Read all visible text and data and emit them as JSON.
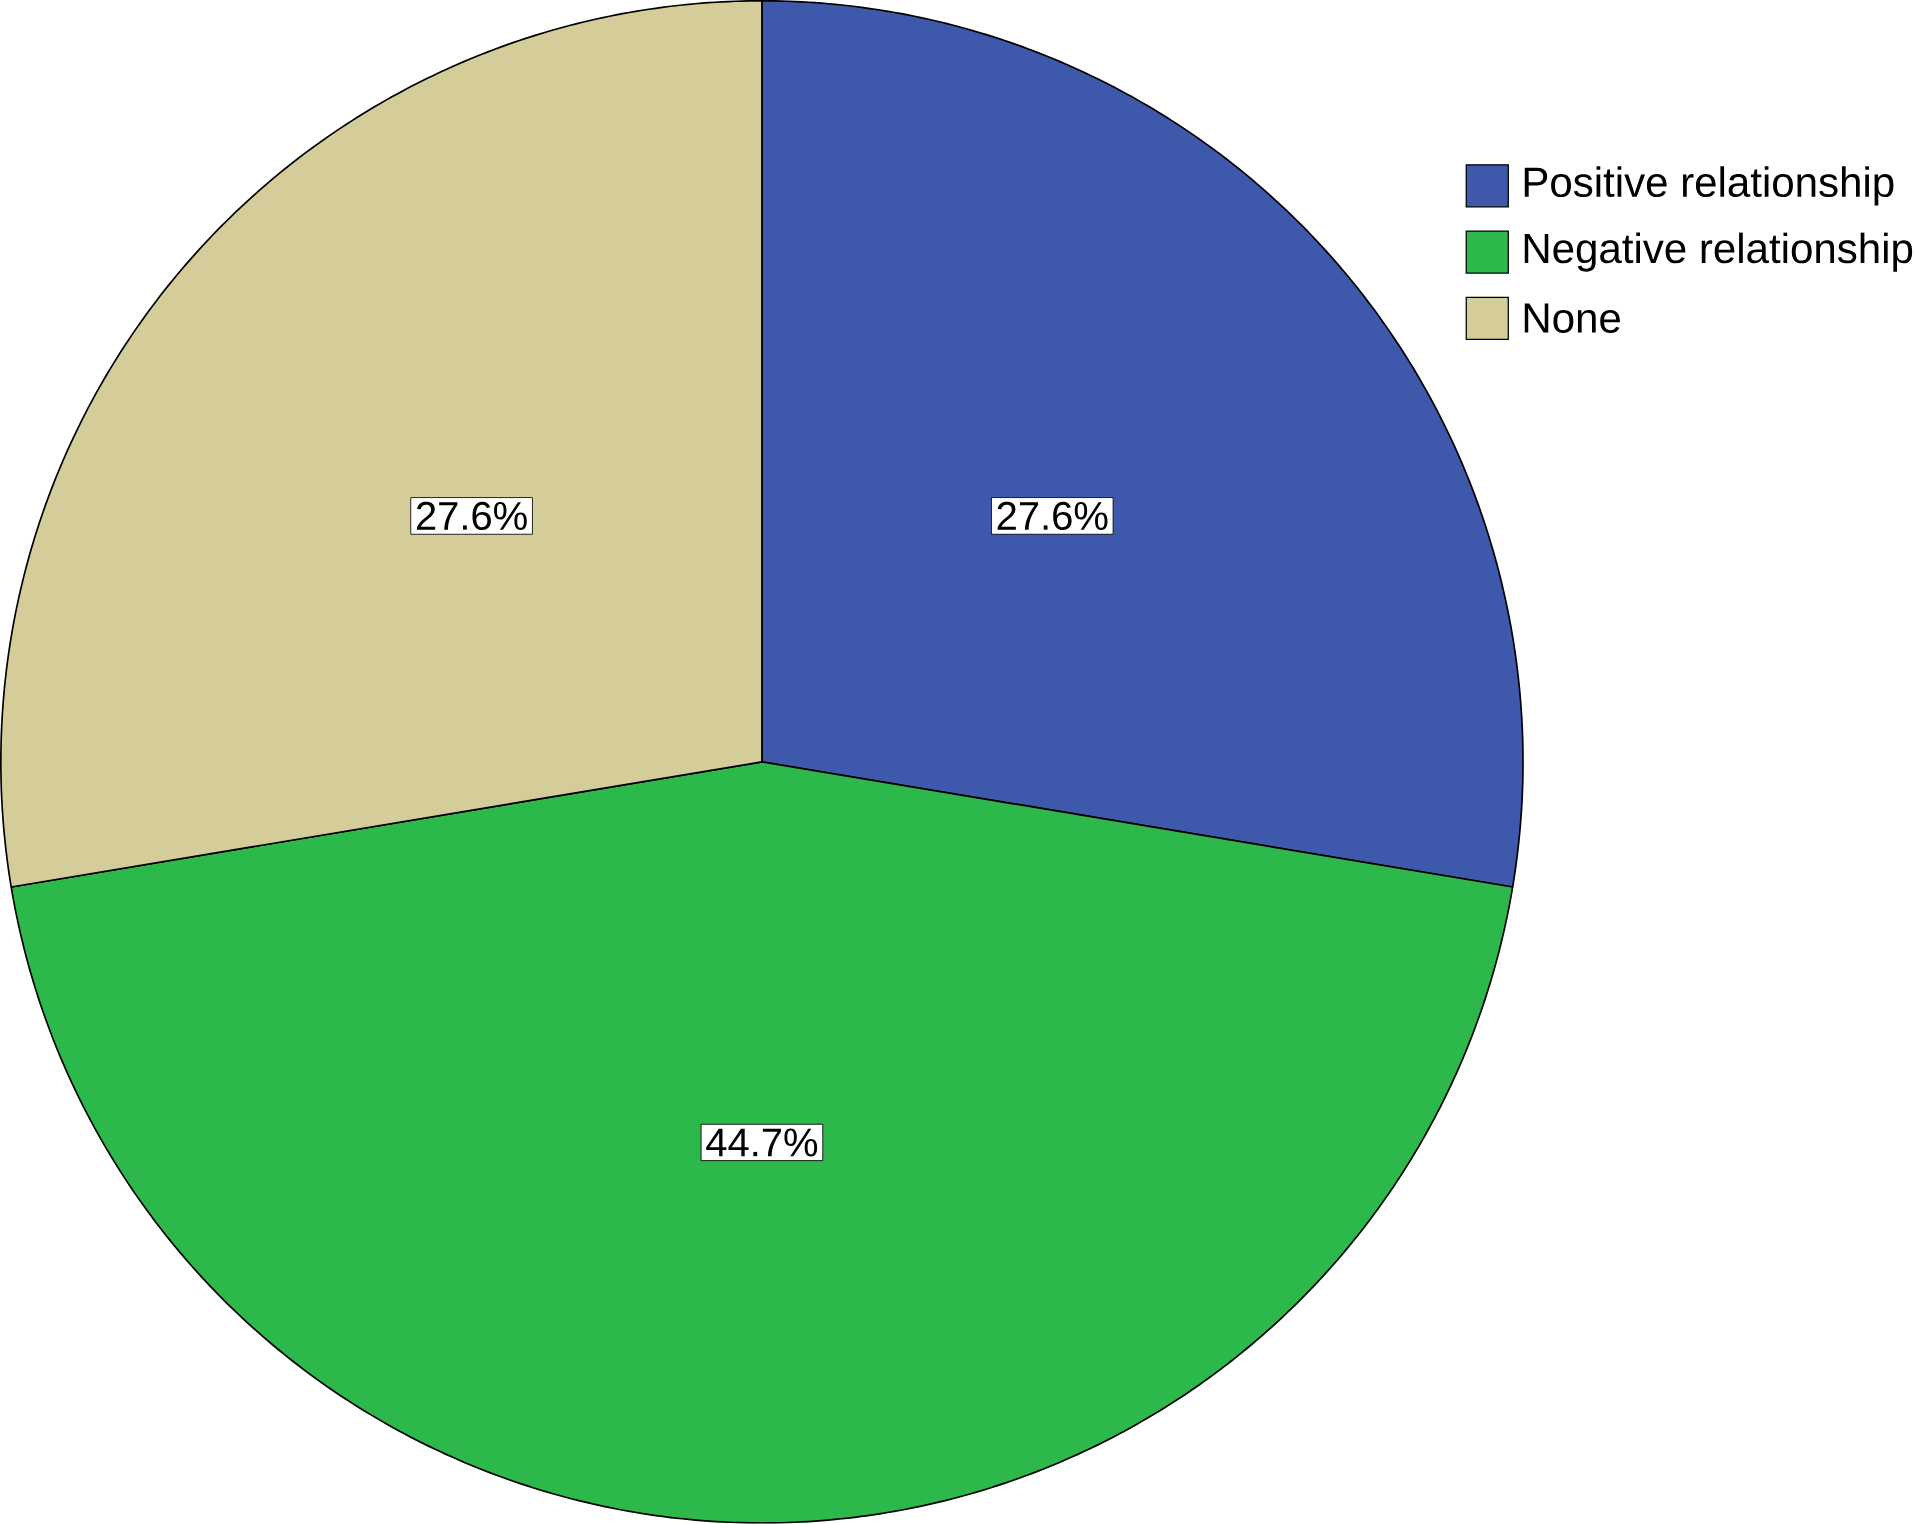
{
  "chart_data": {
    "type": "pie",
    "categories": [
      "Positive relationship",
      "Negative relationship",
      "None"
    ],
    "values": [
      27.6,
      44.7,
      27.6
    ],
    "value_labels": [
      "27.6%",
      "44.7%",
      "27.6%"
    ],
    "colors": [
      "#3e58ac",
      "#2db84b",
      "#d4cd99"
    ],
    "legend": "top right"
  }
}
